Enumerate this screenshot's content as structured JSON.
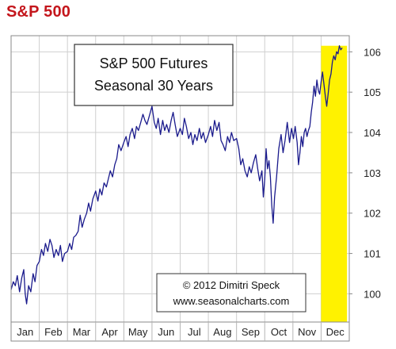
{
  "page_heading": "S&P 500",
  "chart_data": {
    "type": "line",
    "title_lines": [
      "S&P 500 Futures",
      "Seasonal 30 Years"
    ],
    "credit_lines": [
      "© 2012  Dimitri Speck",
      "www.seasonalcharts.com"
    ],
    "xlabel": "",
    "ylabel": "",
    "x_tick_labels": [
      "Jan",
      "Feb",
      "Mar",
      "Apr",
      "May",
      "Jun",
      "Jul",
      "Aug",
      "Sep",
      "Oct",
      "Nov",
      "Dec"
    ],
    "y_ticks": [
      100,
      101,
      102,
      103,
      104,
      105,
      106
    ],
    "ylim": [
      99.3,
      106.4
    ],
    "x_unit": "month (0 = start of Jan, 12 = end of Dec)",
    "xlim": [
      0,
      12
    ],
    "grid": true,
    "y_axis_side": "right",
    "highlight": {
      "label": "Dec",
      "x_range": [
        11.0,
        11.92
      ],
      "color": "#fff200"
    },
    "series": [
      {
        "color": "#1a1a8c",
        "points": [
          [
            0.0,
            100.1
          ],
          [
            0.08,
            100.3
          ],
          [
            0.15,
            100.2
          ],
          [
            0.22,
            100.45
          ],
          [
            0.3,
            100.05
          ],
          [
            0.38,
            100.4
          ],
          [
            0.45,
            100.6
          ],
          [
            0.5,
            100.0
          ],
          [
            0.55,
            99.75
          ],
          [
            0.62,
            100.2
          ],
          [
            0.7,
            100.05
          ],
          [
            0.78,
            100.5
          ],
          [
            0.85,
            100.3
          ],
          [
            0.92,
            100.7
          ],
          [
            1.0,
            100.8
          ],
          [
            1.08,
            101.1
          ],
          [
            1.15,
            100.95
          ],
          [
            1.22,
            101.25
          ],
          [
            1.3,
            101.05
          ],
          [
            1.38,
            101.35
          ],
          [
            1.45,
            101.2
          ],
          [
            1.52,
            100.9
          ],
          [
            1.6,
            101.1
          ],
          [
            1.68,
            100.95
          ],
          [
            1.75,
            101.2
          ],
          [
            1.82,
            100.8
          ],
          [
            1.9,
            101.0
          ],
          [
            2.0,
            101.05
          ],
          [
            2.08,
            101.25
          ],
          [
            2.15,
            101.1
          ],
          [
            2.22,
            101.4
          ],
          [
            2.3,
            101.45
          ],
          [
            2.38,
            101.55
          ],
          [
            2.45,
            101.95
          ],
          [
            2.52,
            101.65
          ],
          [
            2.6,
            101.85
          ],
          [
            2.68,
            102.0
          ],
          [
            2.75,
            102.25
          ],
          [
            2.82,
            102.05
          ],
          [
            2.9,
            102.35
          ],
          [
            3.0,
            102.55
          ],
          [
            3.08,
            102.3
          ],
          [
            3.15,
            102.6
          ],
          [
            3.22,
            102.45
          ],
          [
            3.3,
            102.75
          ],
          [
            3.38,
            102.65
          ],
          [
            3.45,
            102.85
          ],
          [
            3.52,
            103.05
          ],
          [
            3.6,
            102.9
          ],
          [
            3.68,
            103.2
          ],
          [
            3.75,
            103.35
          ],
          [
            3.82,
            103.7
          ],
          [
            3.9,
            103.55
          ],
          [
            4.0,
            103.75
          ],
          [
            4.08,
            103.9
          ],
          [
            4.15,
            103.65
          ],
          [
            4.22,
            103.95
          ],
          [
            4.3,
            104.1
          ],
          [
            4.38,
            103.85
          ],
          [
            4.45,
            104.15
          ],
          [
            4.52,
            104.05
          ],
          [
            4.6,
            104.25
          ],
          [
            4.68,
            104.45
          ],
          [
            4.75,
            104.3
          ],
          [
            4.82,
            104.2
          ],
          [
            4.9,
            104.4
          ],
          [
            5.0,
            104.65
          ],
          [
            5.08,
            104.25
          ],
          [
            5.15,
            104.1
          ],
          [
            5.22,
            104.35
          ],
          [
            5.3,
            103.95
          ],
          [
            5.38,
            104.3
          ],
          [
            5.45,
            104.05
          ],
          [
            5.52,
            104.2
          ],
          [
            5.6,
            104.0
          ],
          [
            5.68,
            104.3
          ],
          [
            5.75,
            104.5
          ],
          [
            5.82,
            104.2
          ],
          [
            5.9,
            103.9
          ],
          [
            6.0,
            104.1
          ],
          [
            6.08,
            103.95
          ],
          [
            6.15,
            104.35
          ],
          [
            6.22,
            104.15
          ],
          [
            6.3,
            103.85
          ],
          [
            6.38,
            104.0
          ],
          [
            6.45,
            103.7
          ],
          [
            6.52,
            103.95
          ],
          [
            6.6,
            103.8
          ],
          [
            6.68,
            104.1
          ],
          [
            6.75,
            103.85
          ],
          [
            6.82,
            104.0
          ],
          [
            6.9,
            103.75
          ],
          [
            7.0,
            103.95
          ],
          [
            7.08,
            104.15
          ],
          [
            7.15,
            103.9
          ],
          [
            7.22,
            104.3
          ],
          [
            7.3,
            104.05
          ],
          [
            7.38,
            104.25
          ],
          [
            7.45,
            103.8
          ],
          [
            7.52,
            103.7
          ],
          [
            7.6,
            103.55
          ],
          [
            7.68,
            103.9
          ],
          [
            7.75,
            103.75
          ],
          [
            7.82,
            104.0
          ],
          [
            7.9,
            103.8
          ],
          [
            8.0,
            103.85
          ],
          [
            8.08,
            103.6
          ],
          [
            8.15,
            103.2
          ],
          [
            8.22,
            103.35
          ],
          [
            8.3,
            103.05
          ],
          [
            8.38,
            102.9
          ],
          [
            8.45,
            103.15
          ],
          [
            8.52,
            103.0
          ],
          [
            8.6,
            103.25
          ],
          [
            8.68,
            103.45
          ],
          [
            8.75,
            103.1
          ],
          [
            8.82,
            102.8
          ],
          [
            8.9,
            103.05
          ],
          [
            8.95,
            102.4
          ],
          [
            9.0,
            102.85
          ],
          [
            9.05,
            103.6
          ],
          [
            9.1,
            103.1
          ],
          [
            9.15,
            103.3
          ],
          [
            9.2,
            102.9
          ],
          [
            9.25,
            102.2
          ],
          [
            9.3,
            101.75
          ],
          [
            9.35,
            102.4
          ],
          [
            9.42,
            102.9
          ],
          [
            9.5,
            103.6
          ],
          [
            9.58,
            103.95
          ],
          [
            9.65,
            103.5
          ],
          [
            9.72,
            103.8
          ],
          [
            9.8,
            104.25
          ],
          [
            9.88,
            103.75
          ],
          [
            9.95,
            104.1
          ],
          [
            10.02,
            103.85
          ],
          [
            10.08,
            104.15
          ],
          [
            10.15,
            103.75
          ],
          [
            10.2,
            103.2
          ],
          [
            10.25,
            103.5
          ],
          [
            10.3,
            103.9
          ],
          [
            10.35,
            103.65
          ],
          [
            10.4,
            104.0
          ],
          [
            10.45,
            104.1
          ],
          [
            10.5,
            103.9
          ],
          [
            10.55,
            104.05
          ],
          [
            10.6,
            104.15
          ],
          [
            10.65,
            104.5
          ],
          [
            10.7,
            104.75
          ],
          [
            10.75,
            105.15
          ],
          [
            10.8,
            104.9
          ],
          [
            10.85,
            105.3
          ],
          [
            10.9,
            105.05
          ],
          [
            10.95,
            104.95
          ],
          [
            11.0,
            105.25
          ],
          [
            11.05,
            105.5
          ],
          [
            11.1,
            105.2
          ],
          [
            11.15,
            104.9
          ],
          [
            11.2,
            104.65
          ],
          [
            11.25,
            104.95
          ],
          [
            11.3,
            105.3
          ],
          [
            11.35,
            105.45
          ],
          [
            11.4,
            105.75
          ],
          [
            11.45,
            105.9
          ],
          [
            11.5,
            105.8
          ],
          [
            11.55,
            106.0
          ],
          [
            11.6,
            105.95
          ],
          [
            11.65,
            106.15
          ],
          [
            11.7,
            106.05
          ],
          [
            11.75,
            106.1
          ]
        ]
      }
    ]
  }
}
